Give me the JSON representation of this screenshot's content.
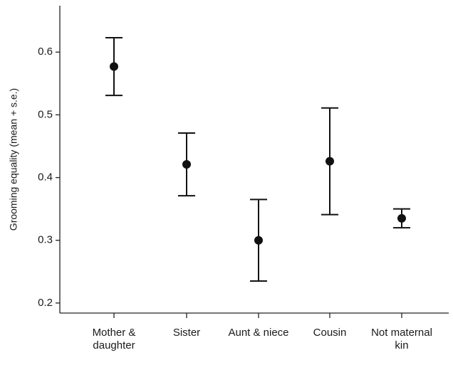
{
  "chart_data": {
    "type": "errorbar",
    "y_label": "Grooming equality (mean + s.e.)",
    "categories": [
      "Mother &\ndaughter",
      "Sister",
      "Aunt & niece",
      "Cousin",
      "Not maternal\nkin"
    ],
    "values": [
      0.577,
      0.421,
      0.3,
      0.426,
      0.335
    ],
    "errors": [
      0.046,
      0.05,
      0.065,
      0.085,
      0.015
    ],
    "color": "#111111",
    "ylim": [
      0.184,
      0.674
    ],
    "yticks": [
      0.2,
      0.3,
      0.4,
      0.5,
      0.6
    ],
    "grid": false
  }
}
